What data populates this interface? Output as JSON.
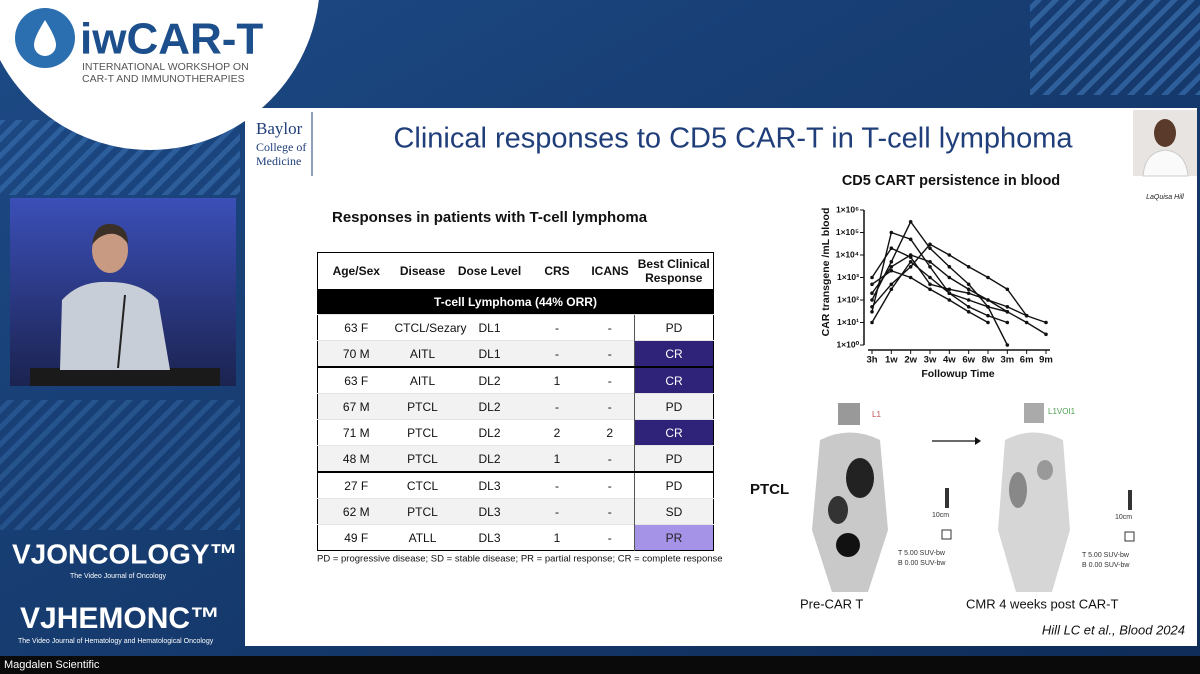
{
  "branding": {
    "logo": "iwCAR-T",
    "tagline": [
      "INTERNATIONAL WORKSHOP ON",
      "CAR-T AND IMMUNOTHERAPIES"
    ]
  },
  "channels": [
    {
      "name": "VJONCOLOGY™",
      "subtitle": "The Video Journal of Oncology"
    },
    {
      "name": "VJHEMONC™",
      "subtitle": "The Video Journal of Hematology and Hematological Oncology"
    }
  ],
  "caption": "Magdalen Scientific",
  "slide": {
    "institution": [
      "Baylor",
      "College of",
      "Medicine"
    ],
    "title": "Clinical responses to CD5 CAR-T in T-cell lymphoma",
    "speaker": "LaQuisa Hill",
    "citation": "Hill LC et al., Blood 2024",
    "table": {
      "title": "Responses in patients with T-cell lymphoma",
      "headers": [
        "Age/Sex",
        "Disease",
        "Dose Level",
        "CRS",
        "ICANS",
        "Best Clinical Response"
      ],
      "section": "T-cell Lymphoma (44% ORR)",
      "rows": [
        [
          "63 F",
          "CTCL/Sezary",
          "DL1",
          "-",
          "-",
          "PD"
        ],
        [
          "70 M",
          "AITL",
          "DL1",
          "-",
          "-",
          "CR"
        ],
        [
          "63 F",
          "AITL",
          "DL2",
          "1",
          "-",
          "CR"
        ],
        [
          "67 M",
          "PTCL",
          "DL2",
          "-",
          "-",
          "PD"
        ],
        [
          "71 M",
          "PTCL",
          "DL2",
          "2",
          "2",
          "CR"
        ],
        [
          "48 M",
          "PTCL",
          "DL2",
          "1",
          "-",
          "PD"
        ],
        [
          "27 F",
          "CTCL",
          "DL3",
          "-",
          "-",
          "PD"
        ],
        [
          "62 M",
          "PTCL",
          "DL3",
          "-",
          "-",
          "SD"
        ],
        [
          "49 F",
          "ATLL",
          "DL3",
          "1",
          "-",
          "PR"
        ]
      ],
      "response_colors": {
        "CR": "#2e2378",
        "PR": "#a593e8"
      },
      "footnote": "PD = progressive disease; SD = stable disease; PR = partial response; CR = complete response"
    },
    "pet": {
      "label": "PTCL",
      "left": {
        "caption": "Pre-CAR T",
        "lesion": "L1",
        "scale": "10cm",
        "t": "T 5.00 SUV-bw",
        "b": "B 0.00 SUV-bw"
      },
      "right": {
        "caption": "CMR 4 weeks post CAR-T",
        "lesion": "L1VOI1",
        "scale": "10cm",
        "t": "T 5.00 SUV-bw",
        "b": "B 0.00 SUV-bw"
      }
    }
  },
  "chart_data": {
    "type": "line",
    "title": "CD5 CART persistence in blood",
    "x_label": "Followup Time",
    "y_label": "CAR transgene /mL blood",
    "yscale": "log",
    "categories": [
      "3h",
      "1w",
      "2w",
      "3w",
      "4w",
      "6w",
      "8w",
      "3m",
      "6m",
      "9m"
    ],
    "ylim": [
      1,
      1000000
    ],
    "yticks": [
      {
        "value": 1,
        "label": "1×10⁰"
      },
      {
        "value": 10,
        "label": "1×10¹"
      },
      {
        "value": 100,
        "label": "1×10²"
      },
      {
        "value": 1000,
        "label": "1×10³"
      },
      {
        "value": 10000,
        "label": "1×10⁴"
      },
      {
        "value": 100000,
        "label": "1×10⁵"
      },
      {
        "value": 1000000,
        "label": "1×10⁶"
      }
    ],
    "color": "#111111",
    "series": [
      {
        "values": [
          100,
          5000,
          300000,
          20000,
          3000,
          500,
          50,
          1,
          null,
          null
        ]
      },
      {
        "values": [
          30,
          100000,
          50000,
          3000,
          200,
          100,
          50,
          30,
          10,
          3
        ]
      },
      {
        "values": [
          1000,
          20000,
          8000,
          500,
          300,
          200,
          100,
          50,
          20,
          10
        ]
      },
      {
        "values": [
          200,
          3000,
          10000,
          5000,
          1000,
          300,
          100,
          30,
          null,
          null
        ]
      },
      {
        "values": [
          50,
          500,
          3000,
          30000,
          10000,
          3000,
          1000,
          300,
          20,
          null
        ]
      },
      {
        "values": [
          10,
          300,
          5000,
          1000,
          200,
          50,
          20,
          10,
          null,
          null
        ]
      },
      {
        "values": [
          500,
          2000,
          1000,
          300,
          100,
          30,
          10,
          null,
          null,
          null
        ]
      }
    ]
  }
}
